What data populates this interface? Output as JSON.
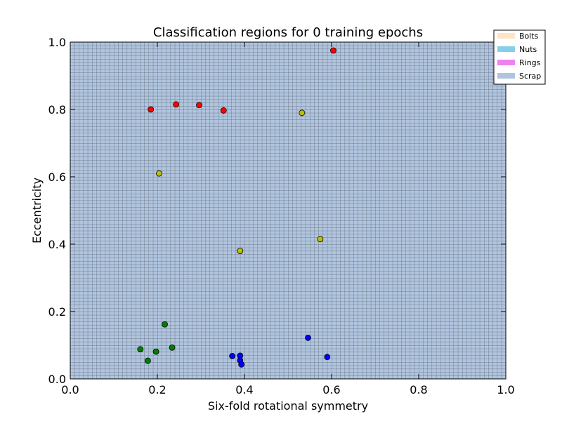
{
  "chart_data": {
    "type": "scatter",
    "title": "Classification regions for 0 training epochs",
    "xlabel": "Six-fold rotational symmetry",
    "ylabel": "Eccentricity",
    "xlim": [
      0.0,
      1.0
    ],
    "ylim": [
      0.0,
      1.0
    ],
    "xticks": [
      "0.0",
      "0.2",
      "0.4",
      "0.6",
      "0.8",
      "1.0"
    ],
    "yticks": [
      "0.0",
      "0.2",
      "0.4",
      "0.6",
      "0.8",
      "1.0"
    ],
    "background_region": {
      "class": "Scrap",
      "color": "#b0c4de",
      "grid_steps": 100
    },
    "legend": {
      "placement": "upper-right-outside",
      "entries": [
        {
          "label": "Bolts",
          "color": "#ffe4c4"
        },
        {
          "label": "Nuts",
          "color": "#87ceeb"
        },
        {
          "label": "Rings",
          "color": "#ee82ee"
        },
        {
          "label": "Scrap",
          "color": "#b0c4de"
        }
      ]
    },
    "series": [
      {
        "color": "#ff0000",
        "points": [
          [
            0.185,
            0.8
          ],
          [
            0.243,
            0.815
          ],
          [
            0.296,
            0.813
          ],
          [
            0.352,
            0.797
          ],
          [
            0.604,
            0.975
          ]
        ]
      },
      {
        "color": "#bfbf00",
        "points": [
          [
            0.204,
            0.61
          ],
          [
            0.532,
            0.79
          ],
          [
            0.39,
            0.38
          ],
          [
            0.574,
            0.415
          ]
        ]
      },
      {
        "color": "#008000",
        "points": [
          [
            0.217,
            0.162
          ],
          [
            0.161,
            0.088
          ],
          [
            0.197,
            0.081
          ],
          [
            0.234,
            0.093
          ],
          [
            0.178,
            0.054
          ]
        ]
      },
      {
        "color": "#0000ff",
        "points": [
          [
            0.372,
            0.068
          ],
          [
            0.39,
            0.069
          ],
          [
            0.39,
            0.055
          ],
          [
            0.393,
            0.043
          ],
          [
            0.546,
            0.122
          ],
          [
            0.59,
            0.065
          ]
        ]
      }
    ]
  }
}
